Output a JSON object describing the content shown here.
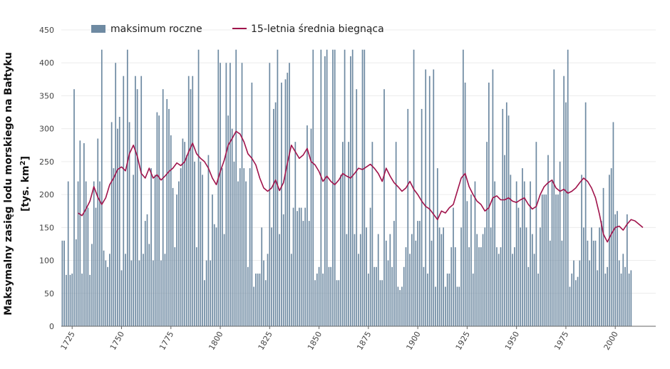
{
  "chart_data": {
    "type": "bar+line",
    "title": "",
    "ylabel_line1": "Maksymalny zasięg lodu morskiego na Bałtyku",
    "ylabel_line2_prefix": "[tys. km",
    "ylabel_line2_sup": "2",
    "ylabel_line2_suffix": "]",
    "xlabel": "",
    "xlim": [
      1720,
      2021
    ],
    "ylim": [
      0,
      450
    ],
    "yticks": [
      0,
      50,
      100,
      150,
      200,
      250,
      300,
      350,
      400,
      450
    ],
    "xticks": [
      1725,
      1750,
      1775,
      1800,
      1825,
      1850,
      1875,
      1900,
      1925,
      1950,
      1975,
      2000
    ],
    "legend_position": "top-left",
    "series": [
      {
        "name": "maksimum roczne",
        "type": "bar",
        "color": "#6e8aa2",
        "x_start": 1720,
        "values": [
          130,
          130,
          78,
          220,
          78,
          80,
          360,
          132,
          220,
          282,
          80,
          278,
          220,
          180,
          78,
          125,
          220,
          180,
          285,
          220,
          420,
          115,
          100,
          90,
          110,
          310,
          240,
          400,
          300,
          318,
          85,
          380,
          110,
          420,
          310,
          100,
          230,
          380,
          360,
          100,
          380,
          110,
          160,
          170,
          125,
          240,
          100,
          230,
          325,
          320,
          100,
          360,
          110,
          345,
          330,
          290,
          210,
          120,
          200,
          220,
          240,
          285,
          280,
          260,
          380,
          360,
          380,
          250,
          120,
          420,
          250,
          230,
          70,
          100,
          260,
          100,
          200,
          155,
          150,
          420,
          400,
          240,
          140,
          400,
          320,
          400,
          300,
          250,
          420,
          220,
          240,
          400,
          240,
          220,
          90,
          240,
          370,
          60,
          80,
          80,
          80,
          150,
          100,
          70,
          110,
          400,
          150,
          330,
          340,
          420,
          140,
          370,
          170,
          375,
          385,
          400,
          110,
          180,
          280,
          175,
          180,
          180,
          160,
          180,
          305,
          160,
          300,
          420,
          70,
          80,
          90,
          420,
          80,
          410,
          420,
          90,
          90,
          420,
          420,
          70,
          70,
          230,
          280,
          420,
          140,
          280,
          410,
          420,
          140,
          360,
          110,
          140,
          420,
          420,
          150,
          80,
          180,
          280,
          90,
          90,
          140,
          70,
          70,
          360,
          130,
          100,
          140,
          90,
          160,
          280,
          60,
          55,
          60,
          90,
          120,
          330,
          110,
          140,
          420,
          130,
          160,
          160,
          330,
          90,
          390,
          80,
          380,
          130,
          390,
          60,
          240,
          150,
          140,
          150,
          60,
          80,
          80,
          120,
          180,
          120,
          60,
          60,
          150,
          420,
          370,
          190,
          120,
          200,
          80,
          220,
          140,
          120,
          120,
          140,
          150,
          280,
          370,
          150,
          390,
          220,
          120,
          110,
          120,
          330,
          260,
          340,
          320,
          230,
          110,
          120,
          220,
          180,
          150,
          240,
          220,
          150,
          90,
          220,
          140,
          110,
          280,
          80,
          150,
          200,
          200,
          200,
          260,
          130,
          220,
          390,
          200,
          200,
          250,
          130,
          380,
          340,
          420,
          60,
          80,
          100,
          70,
          75,
          100,
          230,
          150,
          340,
          130,
          100,
          150,
          130,
          130,
          85,
          150,
          160,
          210,
          80,
          90,
          230,
          240,
          310,
          170,
          175,
          100,
          80,
          110,
          90,
          170,
          80,
          85
        ]
      },
      {
        "name": "15-letnia średnia biegnąca",
        "type": "line",
        "color": "#a0134b",
        "x": [
          1728,
          1730,
          1732,
          1734,
          1736,
          1738,
          1740,
          1742,
          1744,
          1746,
          1748,
          1750,
          1752,
          1754,
          1756,
          1758,
          1760,
          1762,
          1764,
          1766,
          1768,
          1770,
          1772,
          1774,
          1776,
          1778,
          1780,
          1782,
          1784,
          1786,
          1788,
          1790,
          1792,
          1794,
          1796,
          1798,
          1800,
          1802,
          1804,
          1806,
          1808,
          1810,
          1812,
          1814,
          1816,
          1818,
          1820,
          1822,
          1824,
          1826,
          1828,
          1830,
          1832,
          1834,
          1836,
          1838,
          1840,
          1842,
          1844,
          1846,
          1848,
          1850,
          1852,
          1854,
          1856,
          1858,
          1860,
          1862,
          1864,
          1866,
          1868,
          1870,
          1872,
          1874,
          1876,
          1878,
          1880,
          1882,
          1884,
          1886,
          1888,
          1890,
          1892,
          1894,
          1896,
          1898,
          1900,
          1902,
          1904,
          1906,
          1908,
          1910,
          1912,
          1914,
          1916,
          1918,
          1920,
          1922,
          1924,
          1926,
          1928,
          1930,
          1932,
          1934,
          1936,
          1938,
          1940,
          1942,
          1944,
          1946,
          1948,
          1950,
          1952,
          1954,
          1956,
          1958,
          1960,
          1962,
          1964,
          1966,
          1968,
          1970,
          1972,
          1974,
          1976,
          1978,
          1980,
          1982,
          1984,
          1986,
          1988,
          1990,
          1992,
          1994,
          1996,
          1998,
          2000,
          2002,
          2004,
          2006,
          2008,
          2010,
          2012,
          2014
        ],
        "values": [
          172,
          168,
          178,
          190,
          212,
          196,
          185,
          195,
          215,
          225,
          238,
          242,
          236,
          262,
          275,
          258,
          232,
          225,
          240,
          225,
          230,
          222,
          228,
          235,
          240,
          248,
          244,
          250,
          265,
          278,
          262,
          255,
          250,
          240,
          225,
          215,
          235,
          252,
          275,
          285,
          296,
          292,
          280,
          262,
          255,
          245,
          225,
          210,
          205,
          210,
          222,
          206,
          218,
          248,
          275,
          265,
          255,
          260,
          270,
          250,
          245,
          235,
          220,
          228,
          220,
          215,
          222,
          232,
          228,
          225,
          232,
          240,
          238,
          242,
          246,
          240,
          232,
          220,
          240,
          228,
          218,
          212,
          205,
          210,
          220,
          208,
          200,
          190,
          182,
          178,
          170,
          162,
          175,
          172,
          180,
          185,
          205,
          225,
          232,
          212,
          200,
          190,
          185,
          175,
          180,
          195,
          198,
          192,
          192,
          195,
          190,
          188,
          192,
          195,
          185,
          178,
          182,
          200,
          212,
          218,
          222,
          210,
          205,
          208,
          202,
          205,
          210,
          218,
          225,
          220,
          210,
          195,
          170,
          140,
          128,
          140,
          150,
          152,
          146,
          155,
          162,
          160,
          155,
          150
        ]
      }
    ]
  }
}
